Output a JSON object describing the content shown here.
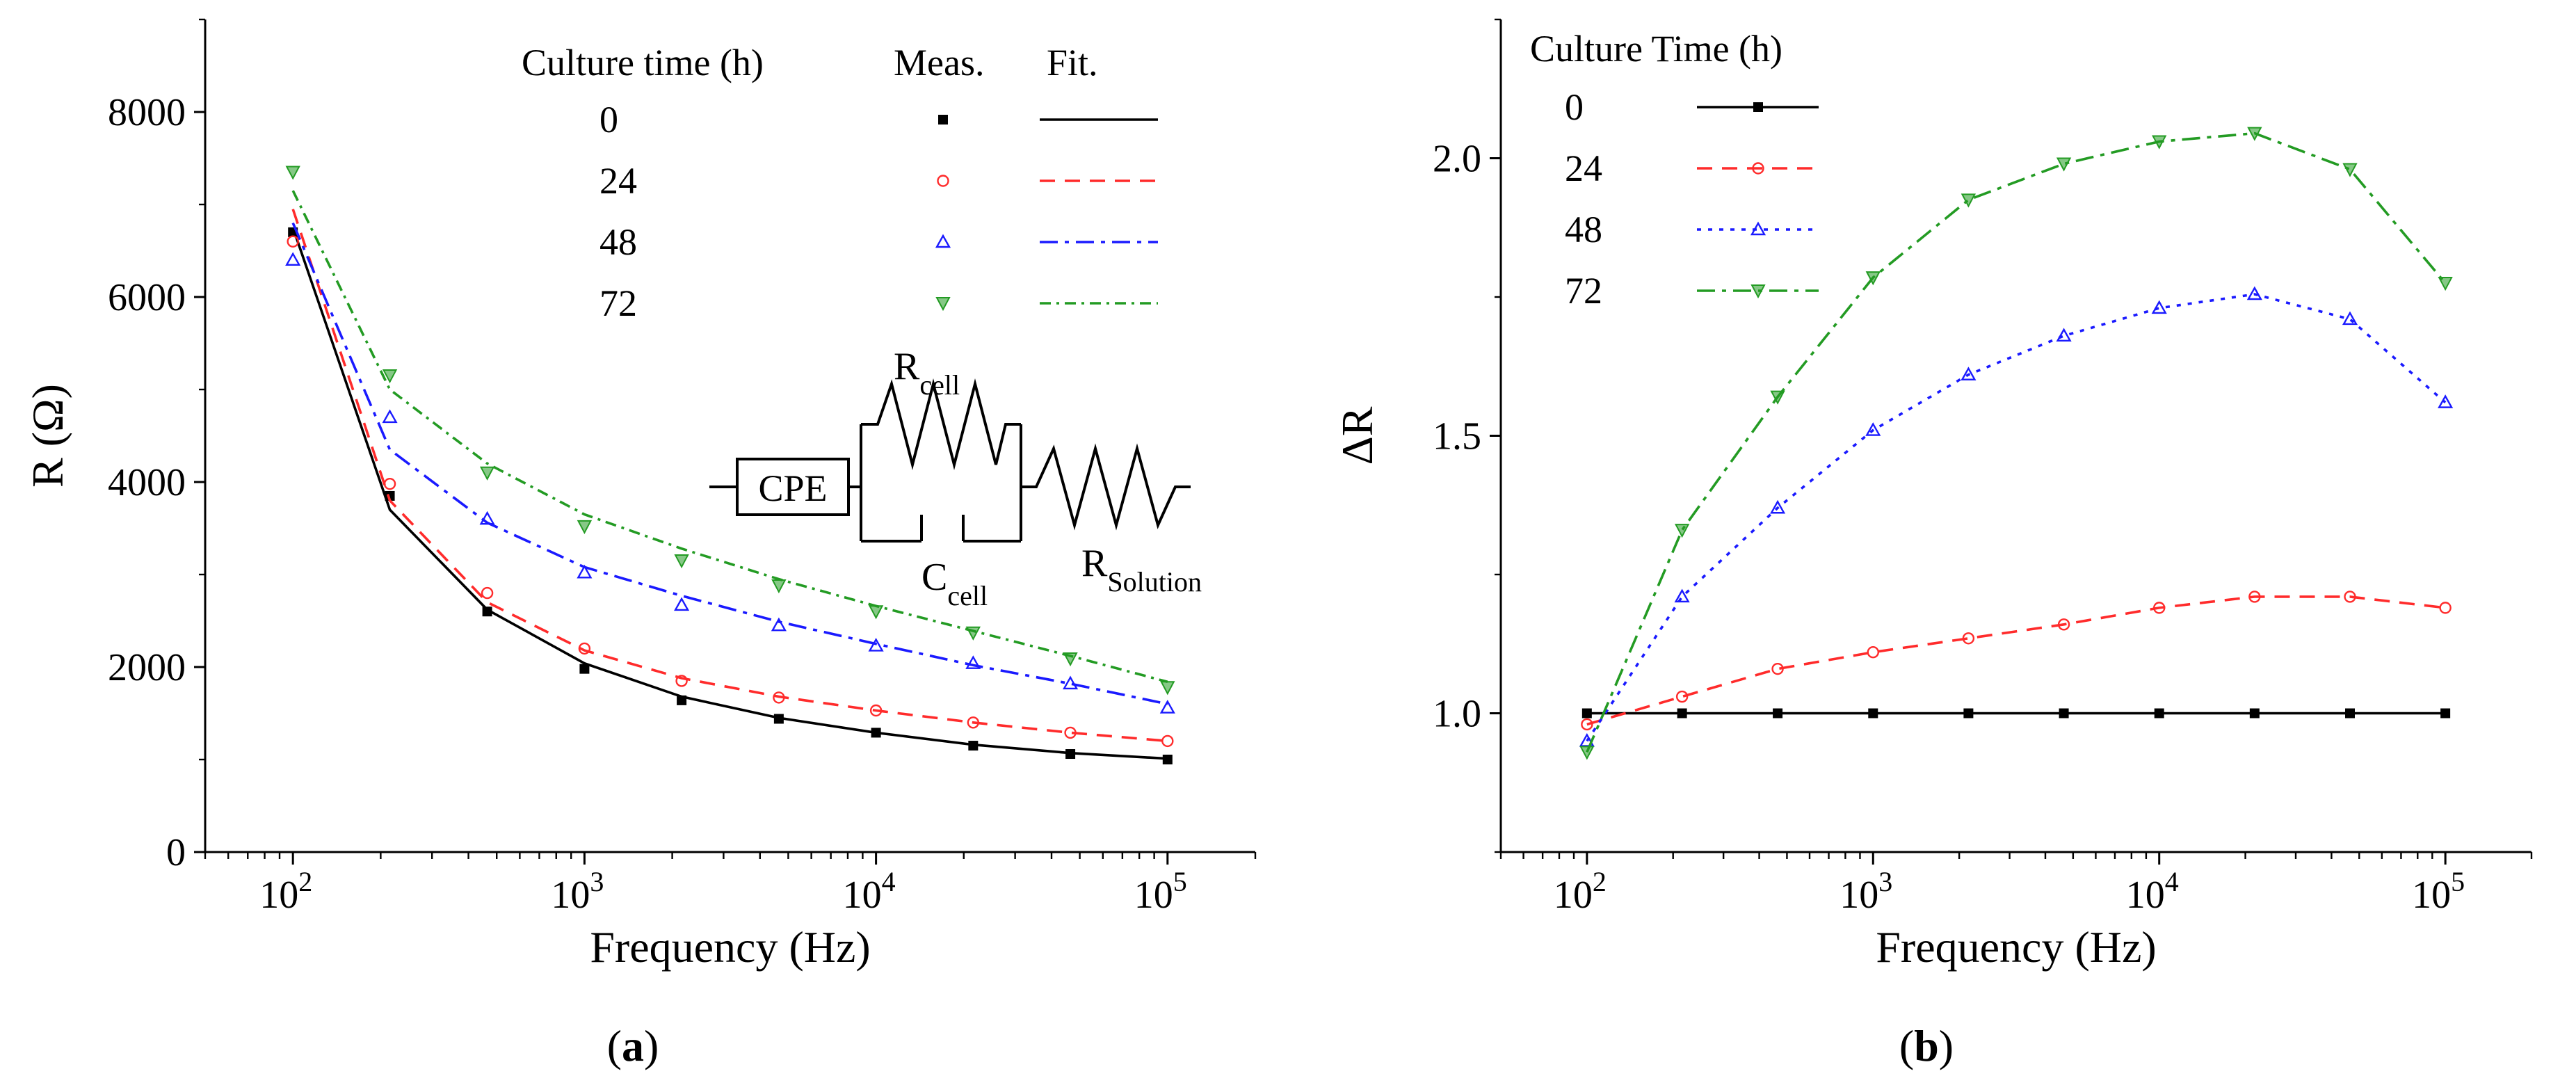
{
  "chart_data": [
    {
      "id": "a",
      "type": "line",
      "panel_label": "a",
      "xlabel": "Frequency (Hz)",
      "ylabel": "R (Ω)",
      "xscale": "log",
      "xlim": [
        50,
        200000
      ],
      "ylim": [
        0,
        9000
      ],
      "yticks": [
        0,
        2000,
        4000,
        6000,
        8000
      ],
      "ytick_labels": [
        "0",
        "2000",
        "4000",
        "6000",
        "8000"
      ],
      "xticks": [
        100,
        1000,
        10000,
        100000
      ],
      "xtick_labels": [
        {
          "base": "10",
          "exp": "2"
        },
        {
          "base": "10",
          "exp": "3"
        },
        {
          "base": "10",
          "exp": "4"
        },
        {
          "base": "10",
          "exp": "5"
        }
      ],
      "legend": {
        "title": "Culture time (h)",
        "meas_header": "Meas.",
        "fit_header": "Fit.",
        "entries": [
          {
            "label": "0",
            "color": "#000000",
            "marker": "square",
            "dash": ""
          },
          {
            "label": "24",
            "color": "#ff2b2b",
            "marker": "circle",
            "dash": "22,14"
          },
          {
            "label": "48",
            "color": "#1a1aff",
            "marker": "triangle",
            "dash": "26,10,6,10"
          },
          {
            "label": "72",
            "color": "#239b23",
            "marker": "diamond",
            "dash": "16,8,4,8"
          }
        ]
      },
      "x": [
        100,
        215,
        464,
        1000,
        2154,
        4642,
        10000,
        21544,
        46416,
        100000
      ],
      "series": [
        {
          "name": "0",
          "color": "#000000",
          "marker": "square",
          "dash": "",
          "measured": [
            6700,
            3850,
            2600,
            1980,
            1640,
            1440,
            1290,
            1150,
            1060,
            1000
          ],
          "fit": [
            6750,
            3700,
            2620,
            2040,
            1680,
            1450,
            1290,
            1160,
            1070,
            1010
          ]
        },
        {
          "name": "24",
          "color": "#ff2b2b",
          "marker": "circle",
          "dash": "22,14",
          "measured": [
            6600,
            3980,
            2800,
            2200,
            1850,
            1670,
            1530,
            1400,
            1290,
            1200
          ],
          "fit": [
            6950,
            3800,
            2700,
            2180,
            1880,
            1680,
            1530,
            1400,
            1290,
            1200
          ]
        },
        {
          "name": "48",
          "color": "#1a1aff",
          "marker": "triangle",
          "dash": "26,10,6,10",
          "measured": [
            6400,
            4700,
            3600,
            3020,
            2670,
            2450,
            2230,
            2040,
            1820,
            1560
          ],
          "fit": [
            6800,
            4350,
            3560,
            3080,
            2770,
            2490,
            2250,
            2020,
            1820,
            1600
          ]
        },
        {
          "name": "72",
          "color": "#239b23",
          "marker": "diamond",
          "dash": "16,8,4,8",
          "measured": [
            7350,
            5150,
            4100,
            3520,
            3150,
            2880,
            2600,
            2370,
            2090,
            1780
          ],
          "fit": [
            7150,
            5000,
            4200,
            3650,
            3280,
            2950,
            2660,
            2390,
            2120,
            1840
          ]
        }
      ],
      "circuit": {
        "cpe": "CPE",
        "rcell_main": "R",
        "rcell_sub": "cell",
        "ccell_main": "C",
        "ccell_sub": "cell",
        "rsol_main": "R",
        "rsol_sub": "Solution"
      }
    },
    {
      "id": "b",
      "type": "line",
      "panel_label": "b",
      "xlabel": "Frequency (Hz)",
      "ylabel": "ΔR",
      "xscale": "log",
      "xlim": [
        50,
        200000
      ],
      "ylim": [
        0.75,
        2.25
      ],
      "yticks": [
        1.0,
        1.5,
        2.0
      ],
      "ytick_labels": [
        "1.0",
        "1.5",
        "2.0"
      ],
      "xticks": [
        100,
        1000,
        10000,
        100000
      ],
      "xtick_labels": [
        {
          "base": "10",
          "exp": "2"
        },
        {
          "base": "10",
          "exp": "3"
        },
        {
          "base": "10",
          "exp": "4"
        },
        {
          "base": "10",
          "exp": "5"
        }
      ],
      "legend": {
        "title": "Culture Time (h)",
        "entries": [
          {
            "label": "0",
            "color": "#000000",
            "marker": "square",
            "dash": ""
          },
          {
            "label": "24",
            "color": "#ff2b2b",
            "marker": "circle",
            "dash": "22,14"
          },
          {
            "label": "48",
            "color": "#1a1aff",
            "marker": "triangle",
            "dash": "6,10"
          },
          {
            "label": "72",
            "color": "#239b23",
            "marker": "diamond",
            "dash": "26,10,6,10"
          }
        ]
      },
      "x": [
        100,
        215,
        464,
        1000,
        2154,
        4642,
        10000,
        21544,
        46416,
        100000
      ],
      "series": [
        {
          "name": "0",
          "color": "#000000",
          "marker": "square",
          "dash": "",
          "values": [
            1.0,
            1.0,
            1.0,
            1.0,
            1.0,
            1.0,
            1.0,
            1.0,
            1.0,
            1.0
          ]
        },
        {
          "name": "24",
          "color": "#ff2b2b",
          "marker": "circle",
          "dash": "22,14",
          "values": [
            0.98,
            1.03,
            1.08,
            1.11,
            1.135,
            1.16,
            1.19,
            1.21,
            1.21,
            1.19
          ]
        },
        {
          "name": "48",
          "color": "#1a1aff",
          "marker": "triangle",
          "dash": "6,10",
          "values": [
            0.95,
            1.21,
            1.37,
            1.51,
            1.61,
            1.68,
            1.73,
            1.755,
            1.71,
            1.56
          ]
        },
        {
          "name": "72",
          "color": "#239b23",
          "marker": "diamond",
          "dash": "26,10,6,10",
          "values": [
            0.93,
            1.33,
            1.57,
            1.785,
            1.925,
            1.99,
            2.03,
            2.045,
            1.98,
            1.775
          ]
        }
      ]
    }
  ]
}
